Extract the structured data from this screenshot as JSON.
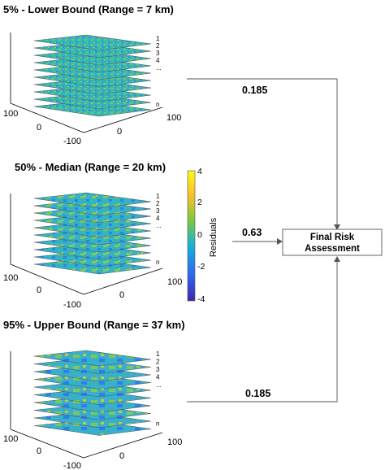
{
  "panels": [
    {
      "title": "5% - Lower Bound (Range = 7 km)",
      "layer_labels": [
        "1",
        "2",
        "3",
        "4",
        "...",
        "n"
      ],
      "axis_ticks": {
        "left_top": "100",
        "left_mid": "0",
        "bottom_left": "-100",
        "right_mid": "0",
        "right_top": "100"
      },
      "weight": "0.185"
    },
    {
      "title": "50% - Median (Range = 20 km)",
      "layer_labels": [
        "1",
        "2",
        "3",
        "4",
        "...",
        "n"
      ],
      "axis_ticks": {
        "left_top": "100",
        "left_mid": "0",
        "bottom_left": "-100",
        "right_mid": "0",
        "right_top": "100"
      },
      "weight": "0.63"
    },
    {
      "title": "95% - Upper Bound (Range = 37 km)",
      "layer_labels": [
        "1",
        "2",
        "3",
        "4",
        "...",
        "n"
      ],
      "axis_ticks": {
        "left_top": "100",
        "left_mid": "0",
        "bottom_left": "-100",
        "right_mid": "0",
        "right_top": "100"
      },
      "weight": "0.185"
    }
  ],
  "colorbar": {
    "label": "Residuals",
    "ticks": [
      "4",
      "2",
      "0",
      "-2",
      "-4"
    ],
    "colors": [
      "#3e26a8",
      "#2f66f2",
      "#17b1d8",
      "#7ec93c",
      "#fdc02d",
      "#f9fb15"
    ]
  },
  "final_box": {
    "line1": "Final Risk",
    "line2": "Assessment"
  }
}
